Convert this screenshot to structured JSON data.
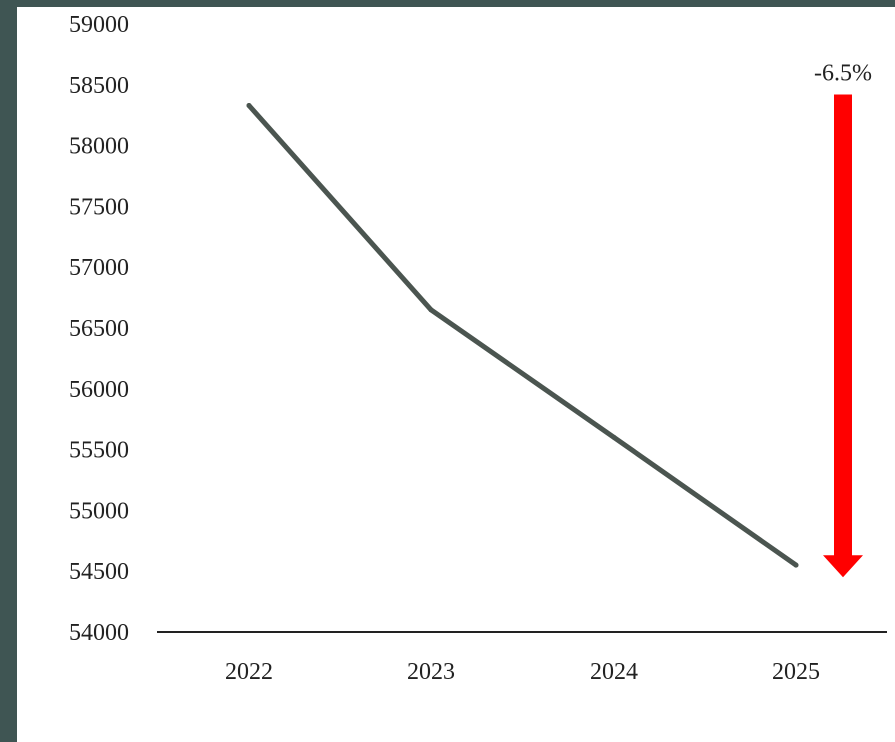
{
  "chart_data": {
    "type": "line",
    "title": "",
    "xlabel": "",
    "ylabel": "",
    "categories": [
      "2022",
      "2023",
      "2024",
      "2025"
    ],
    "series": [
      {
        "values": [
          58330,
          56650,
          55600,
          54550
        ],
        "color": "#4b5550"
      }
    ],
    "ylim": [
      54000,
      59000
    ],
    "yticks": [
      59000,
      58500,
      58000,
      57500,
      57000,
      56500,
      56000,
      55500,
      55000,
      54500,
      54000
    ],
    "grid": false,
    "legend": "none",
    "annotation": {
      "text": "-6.5%",
      "color": "#ff0000",
      "direction": "down",
      "from_value": 58420,
      "to_value": 54450
    }
  },
  "colors": {
    "background": "#3f5553",
    "panel": "#ffffff",
    "arrow": "#ff0000",
    "line": "#4b5550"
  }
}
